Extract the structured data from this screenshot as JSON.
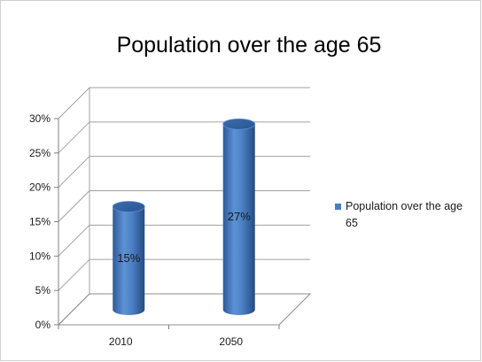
{
  "chart_data": {
    "type": "bar",
    "style": "3d-cylinder",
    "title": "Population over the age 65",
    "categories": [
      "2010",
      "2050"
    ],
    "series": [
      {
        "name": "Population over the age 65",
        "values": [
          15,
          27
        ],
        "data_labels": [
          "15%",
          "27%"
        ],
        "color": "#4a7cc0"
      }
    ],
    "ylim": [
      0,
      30
    ],
    "y_ticks": [
      "0%",
      "5%",
      "10%",
      "15%",
      "20%",
      "25%",
      "30%"
    ],
    "grid": true,
    "legend_position": "right"
  }
}
